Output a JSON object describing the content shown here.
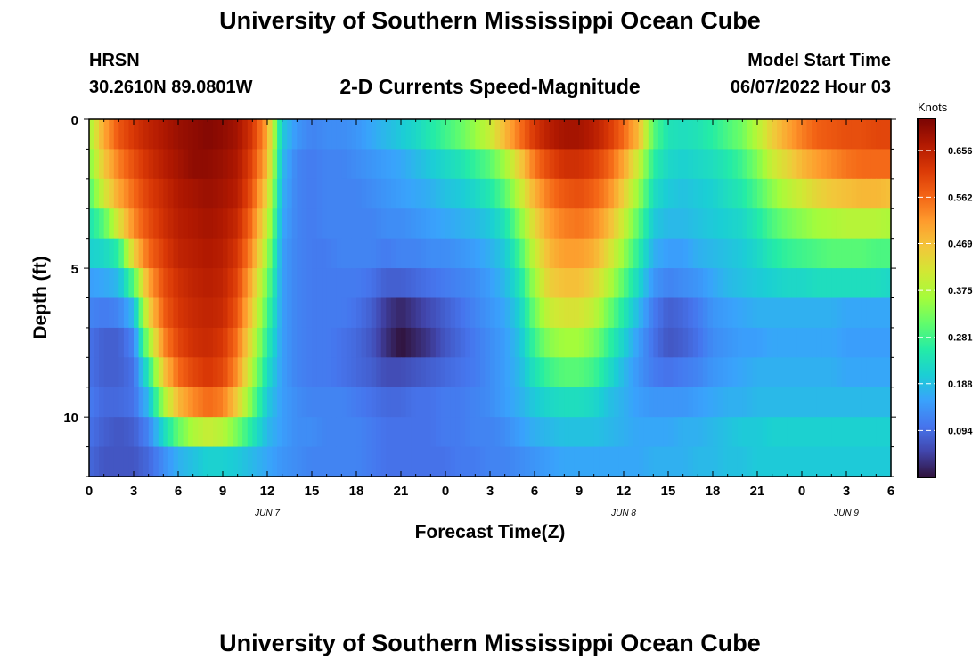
{
  "header": {
    "title": "University of Southern Mississippi Ocean Cube",
    "station": "HRSN",
    "location": "30.2610N  89.0801W",
    "subtitle": "2-D Currents Speed-Magnitude",
    "model_start_label": "Model Start Time",
    "model_start_value": "06/07/2022 Hour 03",
    "repeat_title": "University of Southern Mississippi Ocean Cube"
  },
  "chart_data": {
    "type": "heatmap",
    "title": "2-D Currents Speed-Magnitude",
    "xlabel": "Forecast Time(Z)",
    "ylabel": "Depth (ft)",
    "x_range_hours": [
      0,
      54
    ],
    "y_range_ft": [
      0,
      12
    ],
    "x_ticks": [
      {
        "h": 0,
        "label": "0"
      },
      {
        "h": 3,
        "label": "3"
      },
      {
        "h": 6,
        "label": "6"
      },
      {
        "h": 9,
        "label": "9"
      },
      {
        "h": 12,
        "label": "12"
      },
      {
        "h": 15,
        "label": "15"
      },
      {
        "h": 18,
        "label": "18"
      },
      {
        "h": 21,
        "label": "21"
      },
      {
        "h": 24,
        "label": "0"
      },
      {
        "h": 27,
        "label": "3"
      },
      {
        "h": 30,
        "label": "6"
      },
      {
        "h": 33,
        "label": "9"
      },
      {
        "h": 36,
        "label": "12"
      },
      {
        "h": 39,
        "label": "15"
      },
      {
        "h": 42,
        "label": "18"
      },
      {
        "h": 45,
        "label": "21"
      },
      {
        "h": 48,
        "label": "0"
      },
      {
        "h": 51,
        "label": "3"
      },
      {
        "h": 54,
        "label": "6"
      }
    ],
    "day_labels": [
      {
        "h": 12,
        "label": "JUN 7"
      },
      {
        "h": 36,
        "label": "JUN 8"
      },
      {
        "h": 51,
        "label": "JUN 9"
      }
    ],
    "y_ticks": [
      {
        "v": 0,
        "label": "0"
      },
      {
        "v": 5,
        "label": "5"
      },
      {
        "v": 10,
        "label": "10"
      }
    ],
    "colorbar": {
      "unit_label": "Knots",
      "min": 0.0,
      "max": 0.72,
      "ticks": [
        {
          "v": 0.094,
          "label": "0.094"
        },
        {
          "v": 0.188,
          "label": "0.188"
        },
        {
          "v": 0.281,
          "label": "0.281"
        },
        {
          "v": 0.375,
          "label": "0.375"
        },
        {
          "v": 0.469,
          "label": "0.469"
        },
        {
          "v": 0.562,
          "label": "0.562"
        },
        {
          "v": 0.656,
          "label": "0.656"
        }
      ],
      "colors": [
        "#30123b",
        "#4145ab",
        "#4675ed",
        "#39a2fc",
        "#1bcfd4",
        "#24eca6",
        "#61fc6c",
        "#a4fc3b",
        "#d1e834",
        "#f3c63a",
        "#fe9b2d",
        "#f36315",
        "#d93806",
        "#b11901",
        "#7a0403"
      ]
    },
    "depth_levels_ft": [
      0.5,
      1.5,
      2.5,
      3.5,
      4.5,
      5.5,
      6.5,
      7.5,
      8.5,
      9.5,
      10.5,
      11.5
    ],
    "time_nodes_hours": [
      0,
      1,
      2,
      3,
      4,
      5,
      6,
      7,
      8,
      9,
      10,
      11,
      12,
      13,
      14,
      15,
      16,
      17,
      18,
      19,
      20,
      21,
      22,
      23,
      24,
      25,
      26,
      27,
      28,
      29,
      30,
      31,
      32,
      33,
      34,
      35,
      36,
      37,
      38,
      39,
      40,
      41,
      42,
      43,
      44,
      45,
      46,
      47,
      48,
      49,
      50,
      51,
      52,
      53,
      54
    ],
    "speed_knots_rows": [
      [
        0.36,
        0.5,
        0.58,
        0.62,
        0.65,
        0.67,
        0.69,
        0.7,
        0.71,
        0.7,
        0.68,
        0.62,
        0.5,
        0.2,
        0.14,
        0.12,
        0.13,
        0.13,
        0.14,
        0.16,
        0.18,
        0.2,
        0.22,
        0.25,
        0.28,
        0.31,
        0.35,
        0.4,
        0.48,
        0.55,
        0.62,
        0.66,
        0.68,
        0.68,
        0.66,
        0.62,
        0.56,
        0.48,
        0.3,
        0.24,
        0.23,
        0.24,
        0.26,
        0.29,
        0.32,
        0.38,
        0.45,
        0.5,
        0.54,
        0.57,
        0.58,
        0.59,
        0.59,
        0.6,
        0.6
      ],
      [
        0.33,
        0.46,
        0.54,
        0.59,
        0.63,
        0.66,
        0.68,
        0.7,
        0.7,
        0.69,
        0.67,
        0.6,
        0.48,
        0.18,
        0.12,
        0.11,
        0.12,
        0.12,
        0.13,
        0.14,
        0.15,
        0.16,
        0.18,
        0.2,
        0.22,
        0.24,
        0.27,
        0.3,
        0.36,
        0.45,
        0.55,
        0.6,
        0.63,
        0.63,
        0.61,
        0.57,
        0.5,
        0.4,
        0.26,
        0.22,
        0.21,
        0.22,
        0.23,
        0.25,
        0.28,
        0.33,
        0.4,
        0.44,
        0.48,
        0.51,
        0.53,
        0.55,
        0.56,
        0.56,
        0.56
      ],
      [
        0.29,
        0.41,
        0.5,
        0.56,
        0.61,
        0.64,
        0.67,
        0.68,
        0.69,
        0.68,
        0.66,
        0.58,
        0.44,
        0.17,
        0.12,
        0.11,
        0.12,
        0.12,
        0.12,
        0.13,
        0.14,
        0.15,
        0.16,
        0.17,
        0.19,
        0.2,
        0.22,
        0.25,
        0.3,
        0.39,
        0.49,
        0.55,
        0.58,
        0.59,
        0.57,
        0.53,
        0.45,
        0.35,
        0.23,
        0.2,
        0.19,
        0.2,
        0.21,
        0.23,
        0.25,
        0.29,
        0.34,
        0.38,
        0.41,
        0.44,
        0.46,
        0.47,
        0.48,
        0.48,
        0.47
      ],
      [
        0.24,
        0.3,
        0.42,
        0.53,
        0.59,
        0.63,
        0.66,
        0.67,
        0.68,
        0.67,
        0.64,
        0.55,
        0.4,
        0.16,
        0.12,
        0.11,
        0.12,
        0.12,
        0.12,
        0.12,
        0.13,
        0.13,
        0.14,
        0.15,
        0.16,
        0.17,
        0.18,
        0.2,
        0.24,
        0.33,
        0.44,
        0.51,
        0.54,
        0.55,
        0.53,
        0.48,
        0.4,
        0.3,
        0.2,
        0.18,
        0.18,
        0.19,
        0.2,
        0.21,
        0.22,
        0.25,
        0.29,
        0.32,
        0.34,
        0.36,
        0.37,
        0.38,
        0.38,
        0.38,
        0.37
      ],
      [
        0.21,
        0.22,
        0.26,
        0.45,
        0.56,
        0.61,
        0.65,
        0.66,
        0.67,
        0.66,
        0.62,
        0.52,
        0.36,
        0.15,
        0.12,
        0.11,
        0.11,
        0.12,
        0.12,
        0.12,
        0.11,
        0.12,
        0.12,
        0.13,
        0.13,
        0.14,
        0.15,
        0.17,
        0.2,
        0.28,
        0.4,
        0.48,
        0.51,
        0.51,
        0.49,
        0.43,
        0.35,
        0.26,
        0.17,
        0.15,
        0.15,
        0.17,
        0.18,
        0.19,
        0.2,
        0.22,
        0.25,
        0.27,
        0.28,
        0.29,
        0.3,
        0.3,
        0.3,
        0.29,
        0.29
      ],
      [
        0.15,
        0.16,
        0.18,
        0.3,
        0.5,
        0.59,
        0.63,
        0.65,
        0.66,
        0.65,
        0.6,
        0.48,
        0.32,
        0.15,
        0.12,
        0.11,
        0.11,
        0.11,
        0.11,
        0.1,
        0.08,
        0.08,
        0.09,
        0.1,
        0.11,
        0.12,
        0.13,
        0.15,
        0.18,
        0.24,
        0.36,
        0.45,
        0.47,
        0.47,
        0.44,
        0.38,
        0.3,
        0.22,
        0.14,
        0.12,
        0.13,
        0.14,
        0.16,
        0.18,
        0.19,
        0.2,
        0.21,
        0.22,
        0.22,
        0.23,
        0.23,
        0.23,
        0.23,
        0.23,
        0.22
      ],
      [
        0.12,
        0.11,
        0.12,
        0.18,
        0.44,
        0.57,
        0.62,
        0.64,
        0.65,
        0.64,
        0.58,
        0.45,
        0.29,
        0.15,
        0.12,
        0.11,
        0.11,
        0.11,
        0.1,
        0.08,
        0.04,
        0.02,
        0.04,
        0.06,
        0.08,
        0.1,
        0.12,
        0.14,
        0.16,
        0.21,
        0.32,
        0.4,
        0.42,
        0.42,
        0.39,
        0.32,
        0.25,
        0.18,
        0.11,
        0.08,
        0.09,
        0.11,
        0.14,
        0.15,
        0.16,
        0.17,
        0.17,
        0.17,
        0.17,
        0.17,
        0.17,
        0.16,
        0.16,
        0.16,
        0.16
      ],
      [
        0.1,
        0.08,
        0.08,
        0.12,
        0.35,
        0.53,
        0.6,
        0.63,
        0.64,
        0.62,
        0.55,
        0.41,
        0.26,
        0.15,
        0.12,
        0.11,
        0.11,
        0.1,
        0.09,
        0.07,
        0.03,
        0.0,
        0.02,
        0.04,
        0.07,
        0.09,
        0.11,
        0.13,
        0.15,
        0.19,
        0.28,
        0.34,
        0.36,
        0.36,
        0.33,
        0.27,
        0.21,
        0.15,
        0.1,
        0.07,
        0.08,
        0.1,
        0.13,
        0.14,
        0.15,
        0.15,
        0.16,
        0.16,
        0.16,
        0.16,
        0.16,
        0.15,
        0.15,
        0.15,
        0.15
      ],
      [
        0.1,
        0.08,
        0.08,
        0.1,
        0.25,
        0.46,
        0.56,
        0.6,
        0.62,
        0.6,
        0.52,
        0.37,
        0.23,
        0.15,
        0.12,
        0.11,
        0.11,
        0.1,
        0.09,
        0.08,
        0.06,
        0.06,
        0.07,
        0.08,
        0.09,
        0.1,
        0.11,
        0.13,
        0.15,
        0.18,
        0.24,
        0.28,
        0.3,
        0.3,
        0.28,
        0.23,
        0.18,
        0.14,
        0.11,
        0.1,
        0.11,
        0.12,
        0.14,
        0.15,
        0.16,
        0.17,
        0.17,
        0.17,
        0.17,
        0.17,
        0.17,
        0.16,
        0.16,
        0.16,
        0.16
      ],
      [
        0.11,
        0.09,
        0.09,
        0.1,
        0.18,
        0.36,
        0.48,
        0.53,
        0.56,
        0.54,
        0.45,
        0.32,
        0.2,
        0.15,
        0.13,
        0.12,
        0.12,
        0.12,
        0.11,
        0.1,
        0.09,
        0.09,
        0.1,
        0.1,
        0.11,
        0.11,
        0.12,
        0.13,
        0.15,
        0.17,
        0.2,
        0.22,
        0.23,
        0.23,
        0.22,
        0.19,
        0.17,
        0.15,
        0.14,
        0.14,
        0.14,
        0.15,
        0.16,
        0.17,
        0.17,
        0.18,
        0.18,
        0.18,
        0.18,
        0.18,
        0.18,
        0.18,
        0.18,
        0.18,
        0.18
      ],
      [
        0.1,
        0.08,
        0.07,
        0.08,
        0.12,
        0.22,
        0.31,
        0.37,
        0.4,
        0.38,
        0.32,
        0.25,
        0.18,
        0.15,
        0.13,
        0.13,
        0.12,
        0.12,
        0.12,
        0.11,
        0.1,
        0.1,
        0.1,
        0.1,
        0.11,
        0.11,
        0.12,
        0.12,
        0.13,
        0.15,
        0.17,
        0.18,
        0.19,
        0.19,
        0.19,
        0.18,
        0.17,
        0.16,
        0.16,
        0.16,
        0.17,
        0.17,
        0.18,
        0.19,
        0.2,
        0.2,
        0.21,
        0.21,
        0.21,
        0.21,
        0.21,
        0.21,
        0.21,
        0.21,
        0.21
      ],
      [
        0.09,
        0.07,
        0.07,
        0.07,
        0.09,
        0.13,
        0.17,
        0.19,
        0.21,
        0.21,
        0.2,
        0.18,
        0.16,
        0.14,
        0.13,
        0.12,
        0.12,
        0.12,
        0.12,
        0.11,
        0.1,
        0.1,
        0.1,
        0.1,
        0.1,
        0.11,
        0.11,
        0.12,
        0.12,
        0.13,
        0.14,
        0.15,
        0.16,
        0.16,
        0.16,
        0.16,
        0.16,
        0.16,
        0.17,
        0.17,
        0.17,
        0.18,
        0.18,
        0.19,
        0.19,
        0.2,
        0.2,
        0.2,
        0.2,
        0.2,
        0.2,
        0.2,
        0.2,
        0.2,
        0.2
      ]
    ]
  }
}
